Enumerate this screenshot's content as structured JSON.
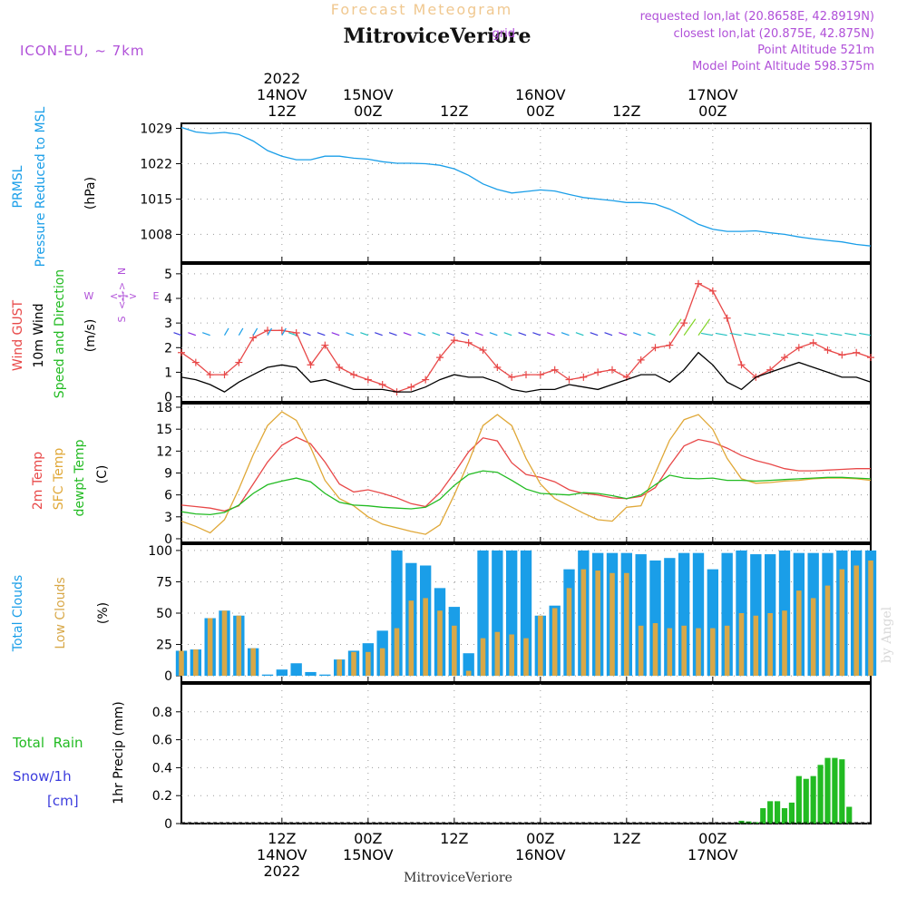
{
  "header": {
    "faint_title": "Forecast Meteogram",
    "station": "MitroviceVeriore",
    "model": "ICON-EU,  ~ 7km",
    "requested": "requested lon,lat (20.8658E, 42.8919N)",
    "closest": "closest lon,lat (20.875E, 42.875N)",
    "closest_prefix": "grid",
    "point_altitude": "Point Altitude 521m",
    "model_altitude": "Model Point Altitude 598.375m"
  },
  "footer": {
    "station": "MitroviceVeriore",
    "watermark": "by Angel"
  },
  "colors": {
    "pressure": "#1a9ee8",
    "gust": "#e84848",
    "wind": "#000000",
    "temp": "#e84848",
    "sfc": "#e0a838",
    "dewpt": "#22bb22",
    "clouds_total": "#1a9ee8",
    "clouds_low": "#d8a848",
    "rain": "#22bb22",
    "snow": "#3b3bdd",
    "compass": "#b050d8",
    "header_purple": "#b050d8",
    "faint_title": "#f0c890",
    "grid": "#9a9a9a",
    "watermark": "#d8d8d8"
  },
  "time_axis": {
    "hours_start": 0,
    "hours_end": 96,
    "top_ticks": [
      {
        "hour": 14,
        "lines": [
          "2022",
          "14NOV",
          "12Z"
        ]
      },
      {
        "hour": 26,
        "lines": [
          "15NOV",
          "00Z"
        ]
      },
      {
        "hour": 38,
        "lines": [
          "12Z"
        ]
      },
      {
        "hour": 50,
        "lines": [
          "16NOV",
          "00Z"
        ]
      },
      {
        "hour": 62,
        "lines": [
          "12Z"
        ]
      },
      {
        "hour": 74,
        "lines": [
          "17NOV",
          "00Z"
        ]
      }
    ],
    "bottom_ticks": [
      {
        "hour": 14,
        "lines": [
          "12Z",
          "14NOV",
          "2022"
        ]
      },
      {
        "hour": 26,
        "lines": [
          "00Z",
          "15NOV"
        ]
      },
      {
        "hour": 38,
        "lines": [
          "12Z"
        ]
      },
      {
        "hour": 50,
        "lines": [
          "00Z",
          "16NOV"
        ]
      },
      {
        "hour": 62,
        "lines": [
          "12Z"
        ]
      },
      {
        "hour": 74,
        "lines": [
          "00Z",
          "17NOV"
        ]
      }
    ]
  },
  "chart_data": [
    {
      "id": "pressure",
      "type": "line",
      "title": "PRMSL Pressure Reduced to MSL",
      "ylabel": "(hPa)",
      "legend": [
        "PRMSL",
        "Pressure Reduced to MSL"
      ],
      "ylim": [
        1002.5,
        1030
      ],
      "yticks": [
        1008,
        1015,
        1022,
        1029
      ],
      "series": [
        {
          "name": "PRMSL",
          "color": "pressure",
          "x": [
            0,
            2,
            4,
            6,
            8,
            10,
            12,
            14,
            16,
            18,
            20,
            22,
            24,
            26,
            28,
            30,
            32,
            34,
            36,
            38,
            40,
            42,
            44,
            46,
            48,
            50,
            52,
            54,
            56,
            58,
            60,
            62,
            64,
            66,
            68,
            70,
            72,
            74,
            76,
            78,
            80,
            82,
            84,
            86,
            88,
            90,
            92,
            94,
            96
          ],
          "values": [
            1029.2,
            1028.3,
            1028.0,
            1028.2,
            1027.8,
            1026.5,
            1024.6,
            1023.5,
            1022.8,
            1022.8,
            1023.5,
            1023.5,
            1023.1,
            1022.9,
            1022.4,
            1022.1,
            1022.1,
            1022.0,
            1021.7,
            1021.0,
            1019.7,
            1018.0,
            1016.9,
            1016.2,
            1016.5,
            1016.8,
            1016.6,
            1015.9,
            1015.3,
            1015.0,
            1014.7,
            1014.3,
            1014.3,
            1014.0,
            1013.0,
            1011.6,
            1010.0,
            1009.0,
            1008.6,
            1008.6,
            1008.7,
            1008.3,
            1008.0,
            1007.5,
            1007.1,
            1006.8,
            1006.5,
            1006.0,
            1005.7
          ]
        }
      ]
    },
    {
      "id": "wind",
      "type": "line",
      "ylabel": "(m/s)",
      "legend": [
        "Wind GUST",
        "10m Wind",
        "Speed and Direction"
      ],
      "compass": {
        "n": "N",
        "s": "S",
        "w": "W",
        "e": "E",
        "arrow": "<-|->"
      },
      "ylim": [
        -0.2,
        5.4
      ],
      "yticks": [
        0,
        1,
        2,
        3,
        4,
        5
      ],
      "series": [
        {
          "name": "Wind GUST",
          "color": "gust",
          "marker": "plus",
          "x": [
            0,
            2,
            4,
            6,
            8,
            10,
            12,
            14,
            16,
            18,
            20,
            22,
            24,
            26,
            28,
            30,
            32,
            34,
            36,
            38,
            40,
            42,
            44,
            46,
            48,
            50,
            52,
            54,
            56,
            58,
            60,
            62,
            64,
            66,
            68,
            70,
            72,
            74,
            76,
            78,
            80,
            82,
            84,
            86,
            88,
            90,
            92,
            94,
            96
          ],
          "values": [
            1.8,
            1.4,
            0.9,
            0.9,
            1.4,
            2.4,
            2.7,
            2.7,
            2.6,
            1.3,
            2.1,
            1.2,
            0.9,
            0.7,
            0.5,
            0.2,
            0.4,
            0.7,
            1.6,
            2.3,
            2.2,
            1.9,
            1.2,
            0.8,
            0.9,
            0.9,
            1.1,
            0.7,
            0.8,
            1.0,
            1.1,
            0.8,
            1.5,
            2.0,
            2.1,
            3.0,
            4.6,
            4.3,
            3.2,
            1.3,
            0.8,
            1.1,
            1.6,
            2.0,
            2.2,
            1.9,
            1.7,
            1.8,
            1.6
          ]
        },
        {
          "name": "10m Wind",
          "color": "wind",
          "x": [
            0,
            2,
            4,
            6,
            8,
            10,
            12,
            14,
            16,
            18,
            20,
            22,
            24,
            26,
            28,
            30,
            32,
            34,
            36,
            38,
            40,
            42,
            44,
            46,
            48,
            50,
            52,
            54,
            56,
            58,
            60,
            62,
            64,
            66,
            68,
            70,
            72,
            74,
            76,
            78,
            80,
            82,
            84,
            86,
            88,
            90,
            92,
            94,
            96
          ],
          "values": [
            0.8,
            0.7,
            0.5,
            0.2,
            0.6,
            0.9,
            1.2,
            1.3,
            1.2,
            0.6,
            0.7,
            0.5,
            0.3,
            0.3,
            0.3,
            0.2,
            0.2,
            0.4,
            0.7,
            0.9,
            0.8,
            0.8,
            0.6,
            0.3,
            0.2,
            0.3,
            0.3,
            0.5,
            0.4,
            0.3,
            0.5,
            0.7,
            0.9,
            0.9,
            0.6,
            1.1,
            1.8,
            1.3,
            0.6,
            0.3,
            0.8,
            1.0,
            1.2,
            1.4,
            1.2,
            1.0,
            0.8,
            0.8,
            0.6
          ]
        }
      ],
      "direction_arrows": {
        "level": 2.5
      }
    },
    {
      "id": "temperature",
      "type": "line",
      "ylabel": "(C)",
      "legend": [
        "2m Temp",
        "SFC Temp",
        "dewpt Temp"
      ],
      "ylim": [
        -0.5,
        18.5
      ],
      "yticks": [
        0,
        3,
        6,
        9,
        12,
        15,
        18
      ],
      "series": [
        {
          "name": "2m Temp",
          "color": "temp",
          "x": [
            0,
            2,
            4,
            6,
            8,
            10,
            12,
            14,
            16,
            18,
            20,
            22,
            24,
            26,
            28,
            30,
            32,
            34,
            36,
            38,
            40,
            42,
            44,
            46,
            48,
            50,
            52,
            54,
            56,
            58,
            60,
            62,
            64,
            66,
            68,
            70,
            72,
            74,
            76,
            78,
            80,
            82,
            84,
            86,
            88,
            90,
            92,
            94,
            96
          ],
          "values": [
            4.6,
            4.4,
            4.2,
            3.8,
            4.5,
            7.5,
            10.5,
            12.8,
            13.9,
            13.0,
            10.5,
            7.5,
            6.4,
            6.7,
            6.2,
            5.6,
            4.8,
            4.4,
            6.3,
            9.0,
            11.9,
            13.8,
            13.4,
            10.4,
            8.8,
            8.4,
            7.8,
            6.7,
            6.2,
            6.0,
            5.6,
            5.5,
            5.8,
            7.0,
            10.0,
            12.7,
            13.6,
            13.2,
            12.4,
            11.4,
            10.7,
            10.2,
            9.6,
            9.3,
            9.3,
            9.4,
            9.5,
            9.6,
            9.6
          ]
        },
        {
          "name": "SFC Temp",
          "color": "sfc",
          "x": [
            0,
            2,
            4,
            6,
            8,
            10,
            12,
            14,
            16,
            18,
            20,
            22,
            24,
            26,
            28,
            30,
            32,
            34,
            36,
            38,
            40,
            42,
            44,
            46,
            48,
            50,
            52,
            54,
            56,
            58,
            60,
            62,
            64,
            66,
            68,
            70,
            72,
            74,
            76,
            78,
            80,
            82,
            84,
            86,
            88,
            90,
            92,
            94,
            96
          ],
          "values": [
            2.4,
            1.7,
            0.8,
            2.6,
            6.8,
            11.5,
            15.5,
            17.4,
            16.2,
            12.5,
            8.0,
            5.5,
            4.5,
            3.0,
            2.0,
            1.5,
            1.0,
            0.6,
            1.9,
            6.0,
            10.5,
            15.5,
            17.0,
            15.5,
            11.0,
            7.5,
            5.5,
            4.5,
            3.5,
            2.6,
            2.4,
            4.3,
            4.5,
            9.0,
            13.5,
            16.3,
            17.0,
            15.0,
            11.0,
            8.2,
            7.6,
            7.7,
            7.9,
            8.0,
            8.2,
            8.3,
            8.3,
            8.2,
            8.0
          ]
        },
        {
          "name": "dewpt Temp",
          "color": "dewpt",
          "x": [
            0,
            2,
            4,
            6,
            8,
            10,
            12,
            14,
            16,
            18,
            20,
            22,
            24,
            26,
            28,
            30,
            32,
            34,
            36,
            38,
            40,
            42,
            44,
            46,
            48,
            50,
            52,
            54,
            56,
            58,
            60,
            62,
            64,
            66,
            68,
            70,
            72,
            74,
            76,
            78,
            80,
            82,
            84,
            86,
            88,
            90,
            92,
            94,
            96
          ],
          "values": [
            3.7,
            3.4,
            3.3,
            3.6,
            4.6,
            6.2,
            7.4,
            7.9,
            8.3,
            7.8,
            6.2,
            5.0,
            4.6,
            4.5,
            4.3,
            4.2,
            4.1,
            4.3,
            5.4,
            7.3,
            8.8,
            9.3,
            9.1,
            8.0,
            6.8,
            6.2,
            6.1,
            6.0,
            6.3,
            6.2,
            5.9,
            5.5,
            6.0,
            7.4,
            8.7,
            8.3,
            8.2,
            8.3,
            8.0,
            8.0,
            7.9,
            8.0,
            8.1,
            8.2,
            8.3,
            8.4,
            8.4,
            8.3,
            8.2
          ]
        }
      ]
    },
    {
      "id": "clouds",
      "type": "bar",
      "ylabel": "(%)",
      "legend": [
        "Total Clouds",
        "Low Clouds"
      ],
      "ylim": [
        -5,
        105
      ],
      "yticks": [
        0,
        25,
        50,
        75,
        100
      ],
      "series": [
        {
          "name": "Total Clouds",
          "color": "clouds_total",
          "x": [
            0,
            2,
            4,
            6,
            8,
            10,
            12,
            14,
            16,
            18,
            20,
            22,
            24,
            26,
            28,
            30,
            32,
            34,
            36,
            38,
            40,
            42,
            44,
            46,
            48,
            50,
            52,
            54,
            56,
            58,
            60,
            62,
            64,
            66,
            68,
            70,
            72,
            74,
            76,
            78,
            80,
            82,
            84,
            86,
            88,
            90,
            92,
            94,
            96
          ],
          "values": [
            20,
            21,
            46,
            52,
            48,
            22,
            1,
            5,
            10,
            3,
            1,
            13,
            20,
            26,
            36,
            100,
            90,
            88,
            70,
            55,
            18,
            100,
            100,
            100,
            100,
            48,
            56,
            85,
            100,
            98,
            98,
            98,
            97,
            92,
            94,
            98,
            98,
            85,
            98,
            100,
            97,
            97,
            100,
            98,
            98,
            98,
            100,
            100,
            100
          ]
        },
        {
          "name": "Low Clouds",
          "color": "clouds_low",
          "x": [
            0,
            2,
            4,
            6,
            8,
            10,
            12,
            14,
            16,
            18,
            20,
            22,
            24,
            26,
            28,
            30,
            32,
            34,
            36,
            38,
            40,
            42,
            44,
            46,
            48,
            50,
            52,
            54,
            56,
            58,
            60,
            62,
            64,
            66,
            68,
            70,
            72,
            74,
            76,
            78,
            80,
            82,
            84,
            86,
            88,
            90,
            92,
            94,
            96
          ],
          "values": [
            20,
            21,
            46,
            52,
            48,
            22,
            0,
            0,
            0,
            0,
            0,
            13,
            19,
            19,
            22,
            38,
            60,
            62,
            52,
            40,
            4,
            30,
            35,
            33,
            30,
            48,
            54,
            70,
            85,
            84,
            82,
            82,
            40,
            42,
            38,
            40,
            38,
            38,
            40,
            50,
            48,
            50,
            52,
            68,
            62,
            72,
            85,
            88,
            92
          ]
        }
      ]
    },
    {
      "id": "precip",
      "type": "bar",
      "ylabel": "1hr Precip (mm)",
      "legend": [
        "Total  Rain",
        "Snow/1h",
        "[cm]"
      ],
      "ylim": [
        0,
        1.0
      ],
      "yticks": [
        0,
        0.2,
        0.4,
        0.6,
        0.8
      ],
      "series": [
        {
          "name": "Total Rain",
          "color": "rain",
          "x": [
            78,
            79,
            80,
            81,
            82,
            83,
            84,
            85,
            86,
            87,
            88,
            89,
            90,
            91,
            92,
            93,
            94,
            95,
            96
          ],
          "values": [
            0.02,
            0.015,
            0.01,
            0.11,
            0.16,
            0.16,
            0.11,
            0.15,
            0.34,
            0.32,
            0.34,
            0.42,
            0.47,
            0.47,
            0.46,
            0.12,
            0,
            0,
            0
          ]
        }
      ]
    }
  ]
}
